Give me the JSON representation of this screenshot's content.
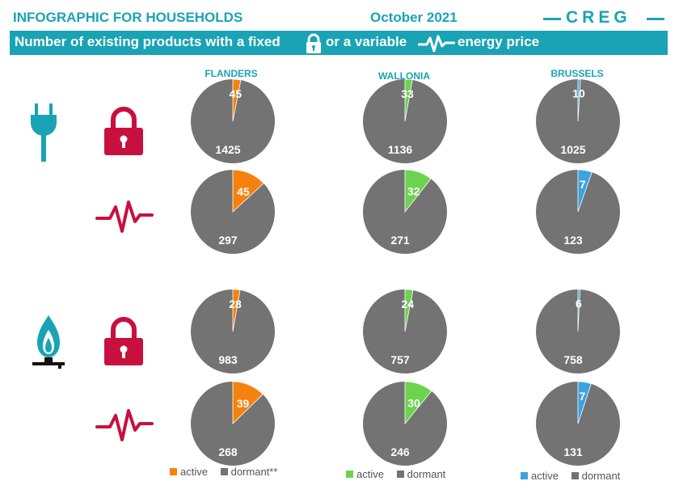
{
  "header": {
    "title": "INFOGRAPHIC FOR HOUSEHOLDS",
    "date": "October 2021",
    "logo": "CREG",
    "banner_part1": "Number of existing products with a fixed",
    "banner_part2": "or a variable",
    "banner_part3": "energy price"
  },
  "regions": [
    "FLANDERS",
    "WALLONIA",
    "BRUSSELS"
  ],
  "colors": {
    "teal": "#1aa3b4",
    "dormant": "#737373",
    "flanders_active": "#f5820f",
    "wallonia_active": "#6cd34f",
    "brussels_active": "#3ba3e0",
    "crimson": "#c8103e"
  },
  "icons": {
    "electricity": "electric-plug-icon",
    "gas": "gas-flame-icon",
    "fixed": "padlock-icon",
    "variable": "heartbeat-pulse-icon"
  },
  "chart_data": {
    "type": "pie",
    "series_labels": [
      "active",
      "dormant"
    ],
    "charts": [
      {
        "energy": "electricity",
        "price": "fixed",
        "region": "FLANDERS",
        "active": 45,
        "dormant": 1425
      },
      {
        "energy": "electricity",
        "price": "fixed",
        "region": "WALLONIA",
        "active": 33,
        "dormant": 1136
      },
      {
        "energy": "electricity",
        "price": "fixed",
        "region": "BRUSSELS",
        "active": 10,
        "dormant": 1025
      },
      {
        "energy": "electricity",
        "price": "variable",
        "region": "FLANDERS",
        "active": 45,
        "dormant": 297
      },
      {
        "energy": "electricity",
        "price": "variable",
        "region": "WALLONIA",
        "active": 32,
        "dormant": 271
      },
      {
        "energy": "electricity",
        "price": "variable",
        "region": "BRUSSELS",
        "active": 7,
        "dormant": 123
      },
      {
        "energy": "gas",
        "price": "fixed",
        "region": "FLANDERS",
        "active": 28,
        "dormant": 983
      },
      {
        "energy": "gas",
        "price": "fixed",
        "region": "WALLONIA",
        "active": 24,
        "dormant": 757
      },
      {
        "energy": "gas",
        "price": "fixed",
        "region": "BRUSSELS",
        "active": 6,
        "dormant": 758
      },
      {
        "energy": "gas",
        "price": "variable",
        "region": "FLANDERS",
        "active": 39,
        "dormant": 268
      },
      {
        "energy": "gas",
        "price": "variable",
        "region": "WALLONIA",
        "active": 30,
        "dormant": 246
      },
      {
        "energy": "gas",
        "price": "variable",
        "region": "BRUSSELS",
        "active": 7,
        "dormant": 131
      }
    ]
  },
  "legends": [
    {
      "active_label": "active",
      "dormant_label": "dormant**"
    },
    {
      "active_label": "active",
      "dormant_label": "dormant"
    },
    {
      "active_label": "active",
      "dormant_label": "dormant"
    }
  ]
}
